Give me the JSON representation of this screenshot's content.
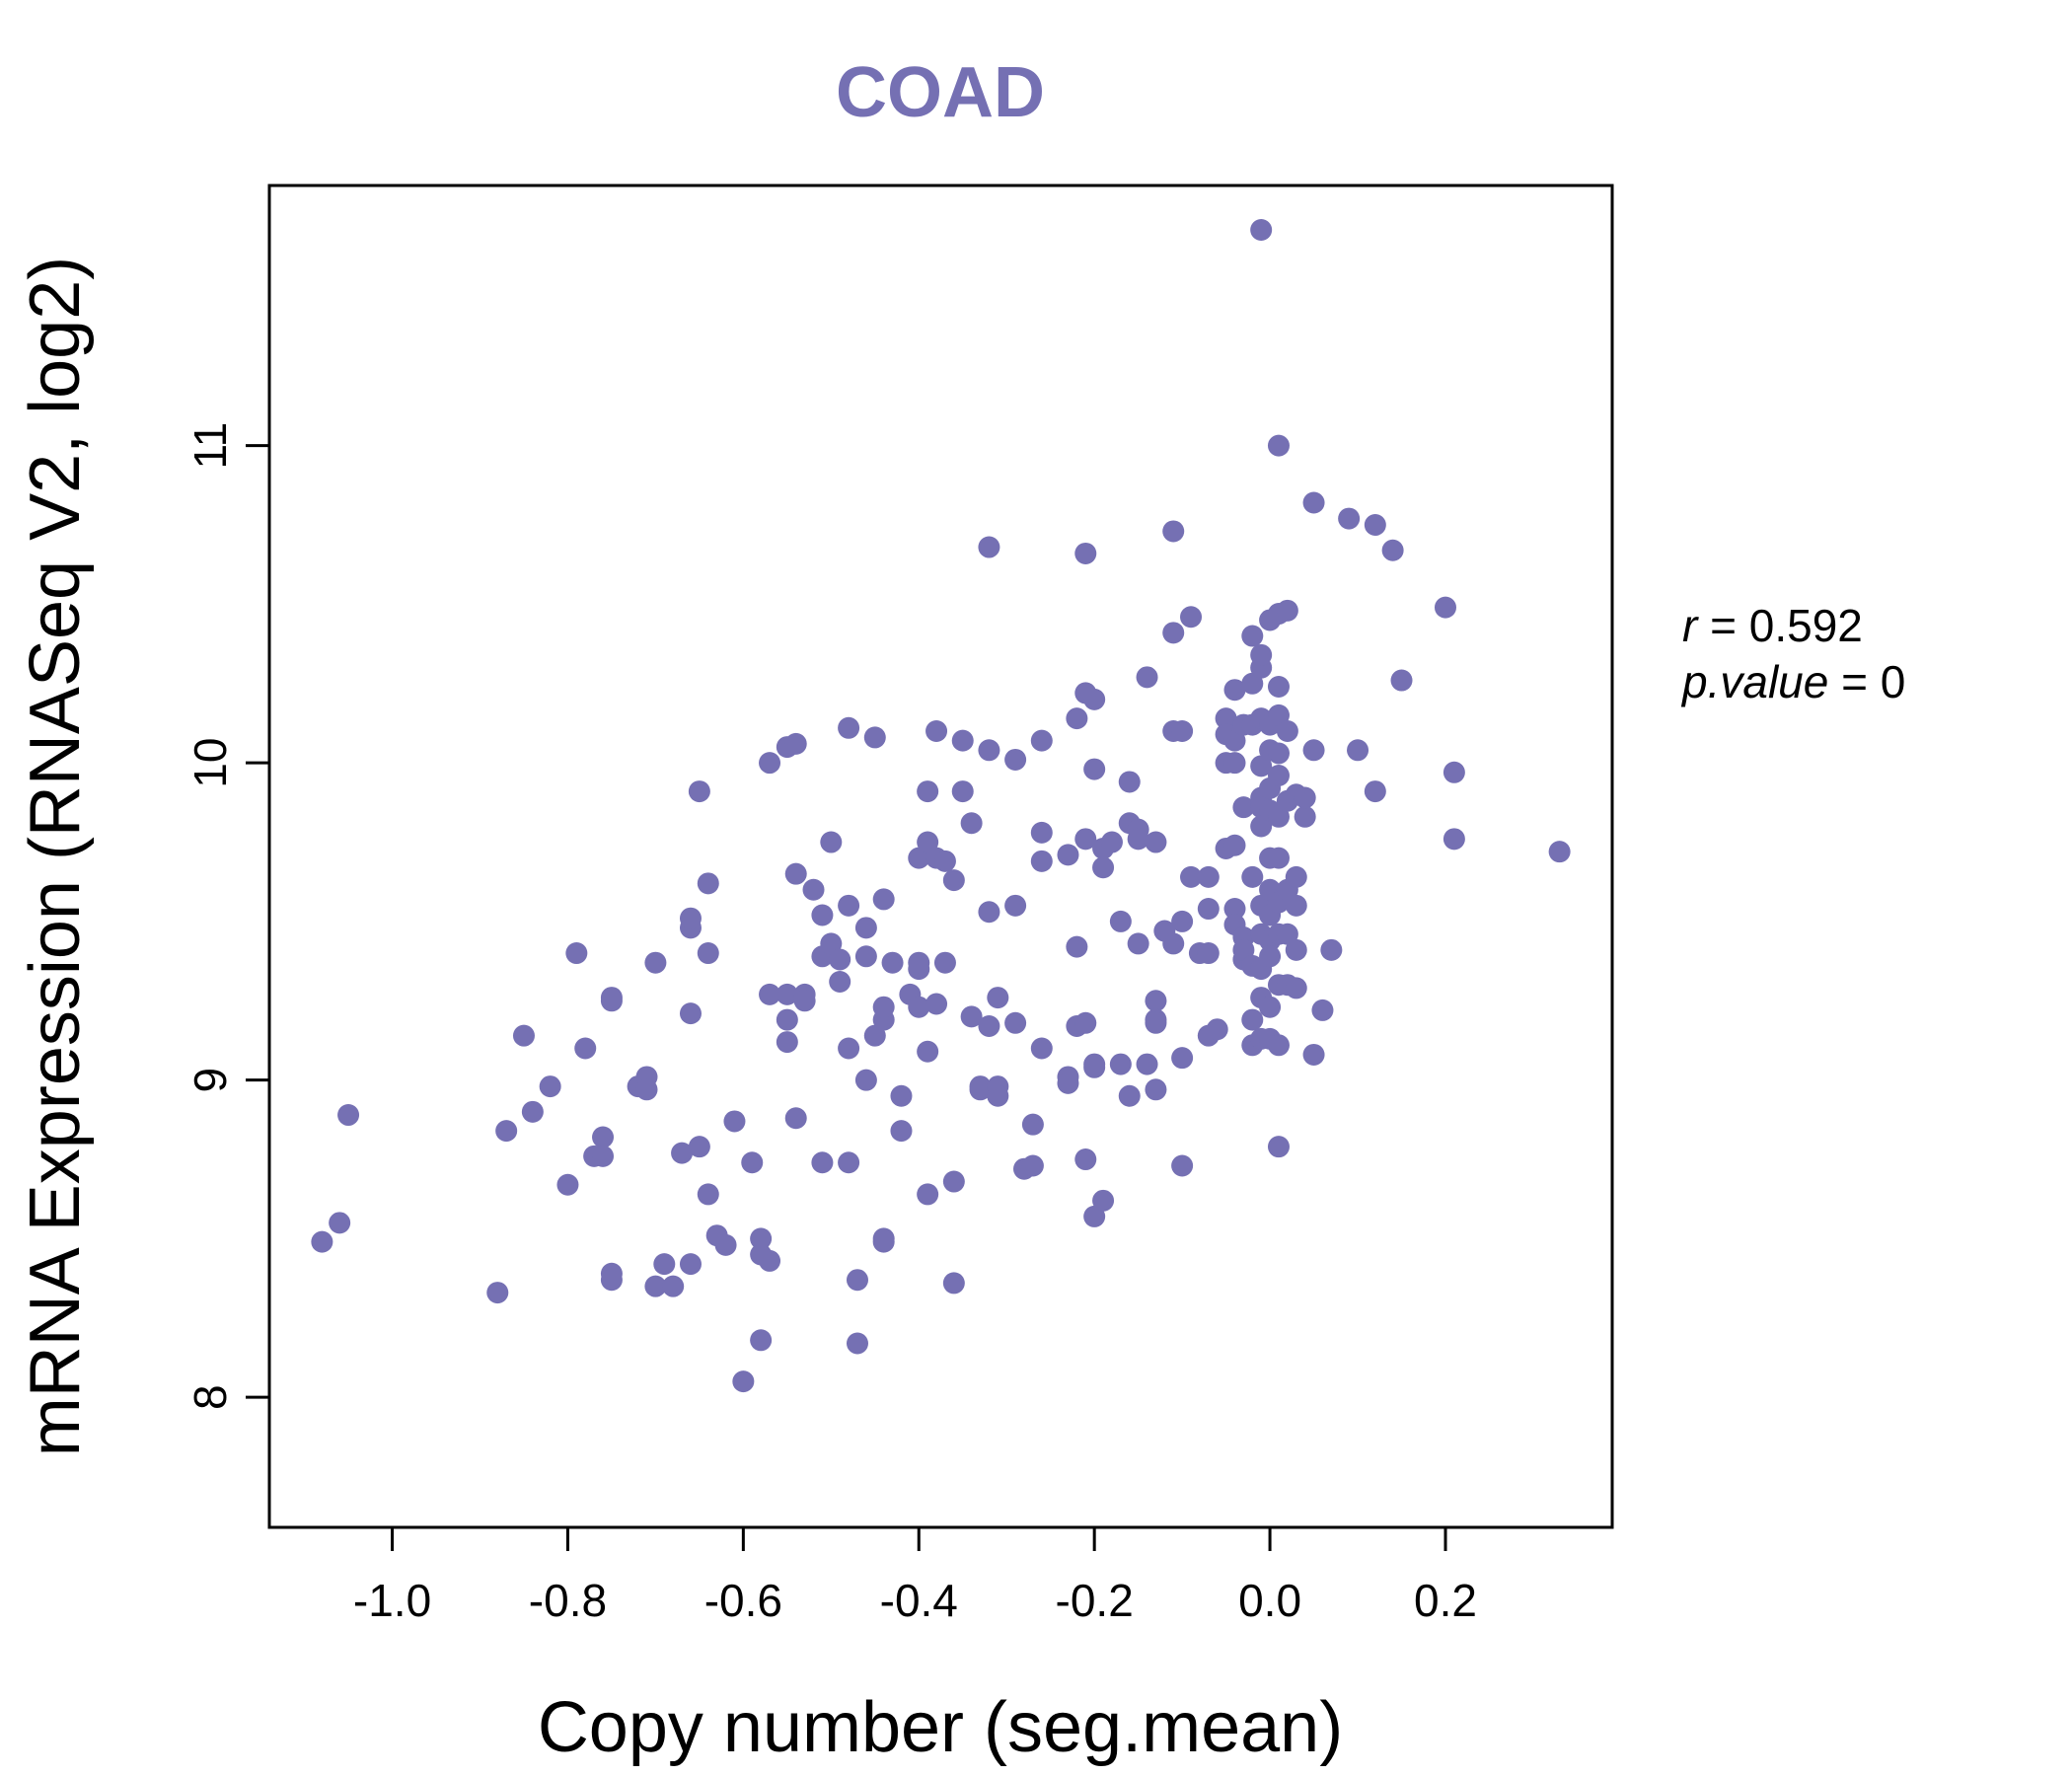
{
  "chart_data": {
    "type": "scatter",
    "title": "COAD",
    "xlabel": "Copy number (seg.mean)",
    "ylabel": "mRNA Expression (RNASeq V2, log2)",
    "xlim": [
      -1.14,
      0.39
    ],
    "ylim": [
      7.59,
      11.82
    ],
    "xticks": [
      -1.0,
      -0.8,
      -0.6,
      -0.4,
      -0.2,
      0.0,
      0.2
    ],
    "xtick_labels": [
      "-1.0",
      "-0.8",
      "-0.6",
      "-0.4",
      "-0.2",
      "0.0",
      "0.2"
    ],
    "yticks": [
      8,
      9,
      10,
      11
    ],
    "ytick_labels": [
      "8",
      "9",
      "10",
      "11"
    ],
    "point_color": "#7570b3",
    "grid": false,
    "stats": {
      "r_symbol": "r",
      "r_value": "0.592",
      "p_symbol": "p.value",
      "p_value": "0"
    },
    "series": [
      {
        "name": "samples",
        "points": [
          [
            -1.08,
            8.49
          ],
          [
            -1.06,
            8.55
          ],
          [
            -1.05,
            8.89
          ],
          [
            -0.88,
            8.33
          ],
          [
            -0.87,
            8.84
          ],
          [
            -0.85,
            9.14
          ],
          [
            -0.84,
            8.9
          ],
          [
            -0.82,
            8.98
          ],
          [
            -0.8,
            8.67
          ],
          [
            -0.79,
            9.4
          ],
          [
            -0.78,
            9.1
          ],
          [
            -0.77,
            8.76
          ],
          [
            -0.76,
            8.82
          ],
          [
            -0.76,
            8.76
          ],
          [
            -0.75,
            9.25
          ],
          [
            -0.75,
            9.26
          ],
          [
            -0.75,
            8.39
          ],
          [
            -0.75,
            8.37
          ],
          [
            -0.72,
            8.98
          ],
          [
            -0.71,
            9.01
          ],
          [
            -0.71,
            8.97
          ],
          [
            -0.7,
            9.37
          ],
          [
            -0.7,
            8.35
          ],
          [
            -0.69,
            8.42
          ],
          [
            -0.68,
            8.35
          ],
          [
            -0.67,
            8.77
          ],
          [
            -0.66,
            9.48
          ],
          [
            -0.66,
            9.51
          ],
          [
            -0.66,
            9.21
          ],
          [
            -0.66,
            8.42
          ],
          [
            -0.65,
            8.79
          ],
          [
            -0.65,
            9.91
          ],
          [
            -0.64,
            8.64
          ],
          [
            -0.64,
            9.4
          ],
          [
            -0.64,
            9.62
          ],
          [
            -0.63,
            8.51
          ],
          [
            -0.62,
            8.48
          ],
          [
            -0.61,
            8.87
          ],
          [
            -0.6,
            8.05
          ],
          [
            -0.59,
            8.74
          ],
          [
            -0.58,
            8.5
          ],
          [
            -0.58,
            8.45
          ],
          [
            -0.58,
            8.18
          ],
          [
            -0.57,
            10.0
          ],
          [
            -0.57,
            9.27
          ],
          [
            -0.57,
            8.43
          ],
          [
            -0.55,
            9.27
          ],
          [
            -0.55,
            9.19
          ],
          [
            -0.55,
            9.12
          ],
          [
            -0.55,
            10.05
          ],
          [
            -0.54,
            10.06
          ],
          [
            -0.54,
            9.65
          ],
          [
            -0.54,
            8.88
          ],
          [
            -0.53,
            9.27
          ],
          [
            -0.53,
            9.25
          ],
          [
            -0.52,
            9.6
          ],
          [
            -0.51,
            9.52
          ],
          [
            -0.51,
            9.39
          ],
          [
            -0.51,
            8.74
          ],
          [
            -0.5,
            9.75
          ],
          [
            -0.5,
            9.43
          ],
          [
            -0.49,
            9.31
          ],
          [
            -0.49,
            9.38
          ],
          [
            -0.48,
            9.55
          ],
          [
            -0.48,
            9.1
          ],
          [
            -0.48,
            10.11
          ],
          [
            -0.48,
            8.74
          ],
          [
            -0.47,
            8.37
          ],
          [
            -0.47,
            8.17
          ],
          [
            -0.46,
            9.39
          ],
          [
            -0.46,
            9.48
          ],
          [
            -0.46,
            9.0
          ],
          [
            -0.45,
            10.08
          ],
          [
            -0.45,
            9.14
          ],
          [
            -0.44,
            9.19
          ],
          [
            -0.44,
            9.23
          ],
          [
            -0.44,
            9.57
          ],
          [
            -0.44,
            8.5
          ],
          [
            -0.44,
            8.49
          ],
          [
            -0.43,
            9.37
          ],
          [
            -0.42,
            8.84
          ],
          [
            -0.42,
            8.95
          ],
          [
            -0.41,
            9.27
          ],
          [
            -0.4,
            9.35
          ],
          [
            -0.4,
            9.7
          ],
          [
            -0.4,
            9.37
          ],
          [
            -0.4,
            9.23
          ],
          [
            -0.39,
            9.09
          ],
          [
            -0.39,
            9.75
          ],
          [
            -0.39,
            9.91
          ],
          [
            -0.39,
            8.64
          ],
          [
            -0.38,
            9.7
          ],
          [
            -0.38,
            9.24
          ],
          [
            -0.38,
            10.1
          ],
          [
            -0.37,
            9.69
          ],
          [
            -0.37,
            9.37
          ],
          [
            -0.36,
            9.63
          ],
          [
            -0.36,
            8.68
          ],
          [
            -0.36,
            8.36
          ],
          [
            -0.35,
            9.91
          ],
          [
            -0.35,
            10.07
          ],
          [
            -0.34,
            9.81
          ],
          [
            -0.34,
            9.2
          ],
          [
            -0.33,
            8.98
          ],
          [
            -0.33,
            8.97
          ],
          [
            -0.32,
            9.53
          ],
          [
            -0.32,
            10.04
          ],
          [
            -0.32,
            10.68
          ],
          [
            -0.32,
            9.17
          ],
          [
            -0.31,
            9.26
          ],
          [
            -0.31,
            8.98
          ],
          [
            -0.31,
            8.95
          ],
          [
            -0.29,
            9.18
          ],
          [
            -0.29,
            9.55
          ],
          [
            -0.29,
            10.01
          ],
          [
            -0.28,
            8.72
          ],
          [
            -0.27,
            8.73
          ],
          [
            -0.27,
            8.86
          ],
          [
            -0.26,
            9.1
          ],
          [
            -0.26,
            9.78
          ],
          [
            -0.26,
            9.69
          ],
          [
            -0.26,
            10.07
          ],
          [
            -0.23,
            9.71
          ],
          [
            -0.23,
            9.01
          ],
          [
            -0.23,
            8.99
          ],
          [
            -0.22,
            10.14
          ],
          [
            -0.21,
            10.22
          ],
          [
            -0.22,
            9.42
          ],
          [
            -0.22,
            9.17
          ],
          [
            -0.21,
            9.18
          ],
          [
            -0.21,
            8.75
          ],
          [
            -0.21,
            10.66
          ],
          [
            -0.21,
            9.76
          ],
          [
            -0.2,
            10.2
          ],
          [
            -0.2,
            9.98
          ],
          [
            -0.2,
            9.05
          ],
          [
            -0.2,
            9.04
          ],
          [
            -0.2,
            8.57
          ],
          [
            -0.19,
            8.62
          ],
          [
            -0.19,
            9.73
          ],
          [
            -0.19,
            9.67
          ],
          [
            -0.18,
            9.75
          ],
          [
            -0.17,
            9.5
          ],
          [
            -0.17,
            9.05
          ],
          [
            -0.16,
            9.94
          ],
          [
            -0.16,
            9.81
          ],
          [
            -0.16,
            8.95
          ],
          [
            -0.15,
            9.79
          ],
          [
            -0.15,
            9.43
          ],
          [
            -0.15,
            9.76
          ],
          [
            -0.14,
            10.27
          ],
          [
            -0.14,
            9.05
          ],
          [
            -0.13,
            9.75
          ],
          [
            -0.13,
            9.25
          ],
          [
            -0.13,
            9.19
          ],
          [
            -0.13,
            9.18
          ],
          [
            -0.13,
            8.97
          ],
          [
            -0.12,
            9.47
          ],
          [
            -0.11,
            10.1
          ],
          [
            -0.11,
            10.41
          ],
          [
            -0.11,
            10.73
          ],
          [
            -0.11,
            9.43
          ],
          [
            -0.1,
            10.1
          ],
          [
            -0.1,
            9.5
          ],
          [
            -0.1,
            9.07
          ],
          [
            -0.1,
            8.73
          ],
          [
            -0.09,
            10.46
          ],
          [
            -0.09,
            9.64
          ],
          [
            -0.08,
            9.4
          ],
          [
            -0.07,
            9.64
          ],
          [
            -0.07,
            9.54
          ],
          [
            -0.07,
            9.4
          ],
          [
            -0.07,
            9.14
          ],
          [
            -0.06,
            9.16
          ],
          [
            -0.05,
            9.73
          ],
          [
            -0.05,
            10.14
          ],
          [
            -0.05,
            10.09
          ],
          [
            -0.05,
            10.0
          ],
          [
            -0.04,
            10.23
          ],
          [
            -0.04,
            10.07
          ],
          [
            -0.04,
            10.0
          ],
          [
            -0.04,
            9.74
          ],
          [
            -0.04,
            9.54
          ],
          [
            -0.04,
            9.49
          ],
          [
            -0.03,
            9.45
          ],
          [
            -0.03,
            9.38
          ],
          [
            -0.03,
            9.41
          ],
          [
            -0.03,
            9.86
          ],
          [
            -0.03,
            10.12
          ],
          [
            -0.02,
            9.64
          ],
          [
            -0.02,
            9.36
          ],
          [
            -0.02,
            9.19
          ],
          [
            -0.02,
            9.11
          ],
          [
            -0.02,
            10.4
          ],
          [
            -0.02,
            10.25
          ],
          [
            -0.02,
            10.12
          ],
          [
            -0.01,
            9.99
          ],
          [
            -0.01,
            9.89
          ],
          [
            -0.01,
            9.86
          ],
          [
            -0.01,
            9.8
          ],
          [
            -0.01,
            9.55
          ],
          [
            -0.01,
            9.46
          ],
          [
            -0.01,
            9.35
          ],
          [
            -0.01,
            9.26
          ],
          [
            -0.01,
            9.13
          ],
          [
            -0.01,
            10.3
          ],
          [
            -0.01,
            10.34
          ],
          [
            -0.01,
            10.14
          ],
          [
            0.0,
            10.04
          ],
          [
            0.0,
            9.92
          ],
          [
            0.0,
            9.85
          ],
          [
            0.0,
            9.7
          ],
          [
            0.0,
            9.6
          ],
          [
            0.0,
            9.52
          ],
          [
            0.0,
            9.44
          ],
          [
            0.0,
            9.39
          ],
          [
            0.0,
            9.23
          ],
          [
            0.0,
            9.13
          ],
          [
            -0.01,
            11.68
          ],
          [
            0.0,
            10.45
          ],
          [
            0.0,
            10.12
          ],
          [
            0.01,
            10.47
          ],
          [
            0.01,
            10.24
          ],
          [
            0.01,
            10.15
          ],
          [
            0.01,
            10.03
          ],
          [
            0.01,
            9.96
          ],
          [
            0.01,
            9.83
          ],
          [
            0.01,
            9.7
          ],
          [
            0.01,
            9.56
          ],
          [
            0.01,
            9.46
          ],
          [
            0.01,
            9.3
          ],
          [
            0.01,
            9.11
          ],
          [
            0.01,
            8.79
          ],
          [
            0.01,
            11.0
          ],
          [
            0.02,
            10.48
          ],
          [
            0.02,
            10.1
          ],
          [
            0.02,
            9.88
          ],
          [
            0.02,
            9.6
          ],
          [
            0.02,
            9.46
          ],
          [
            0.02,
            9.3
          ],
          [
            0.03,
            9.64
          ],
          [
            0.03,
            9.55
          ],
          [
            0.03,
            9.41
          ],
          [
            0.03,
            9.29
          ],
          [
            0.03,
            9.9
          ],
          [
            0.04,
            9.83
          ],
          [
            0.04,
            9.89
          ],
          [
            0.05,
            9.08
          ],
          [
            0.05,
            10.82
          ],
          [
            0.05,
            10.04
          ],
          [
            0.06,
            9.22
          ],
          [
            0.07,
            9.41
          ],
          [
            0.09,
            10.77
          ],
          [
            0.1,
            10.04
          ],
          [
            0.12,
            10.75
          ],
          [
            0.12,
            9.91
          ],
          [
            0.14,
            10.67
          ],
          [
            0.15,
            10.26
          ],
          [
            0.2,
            10.49
          ],
          [
            0.21,
            9.76
          ],
          [
            0.21,
            9.97
          ],
          [
            0.33,
            9.72
          ]
        ]
      }
    ]
  }
}
